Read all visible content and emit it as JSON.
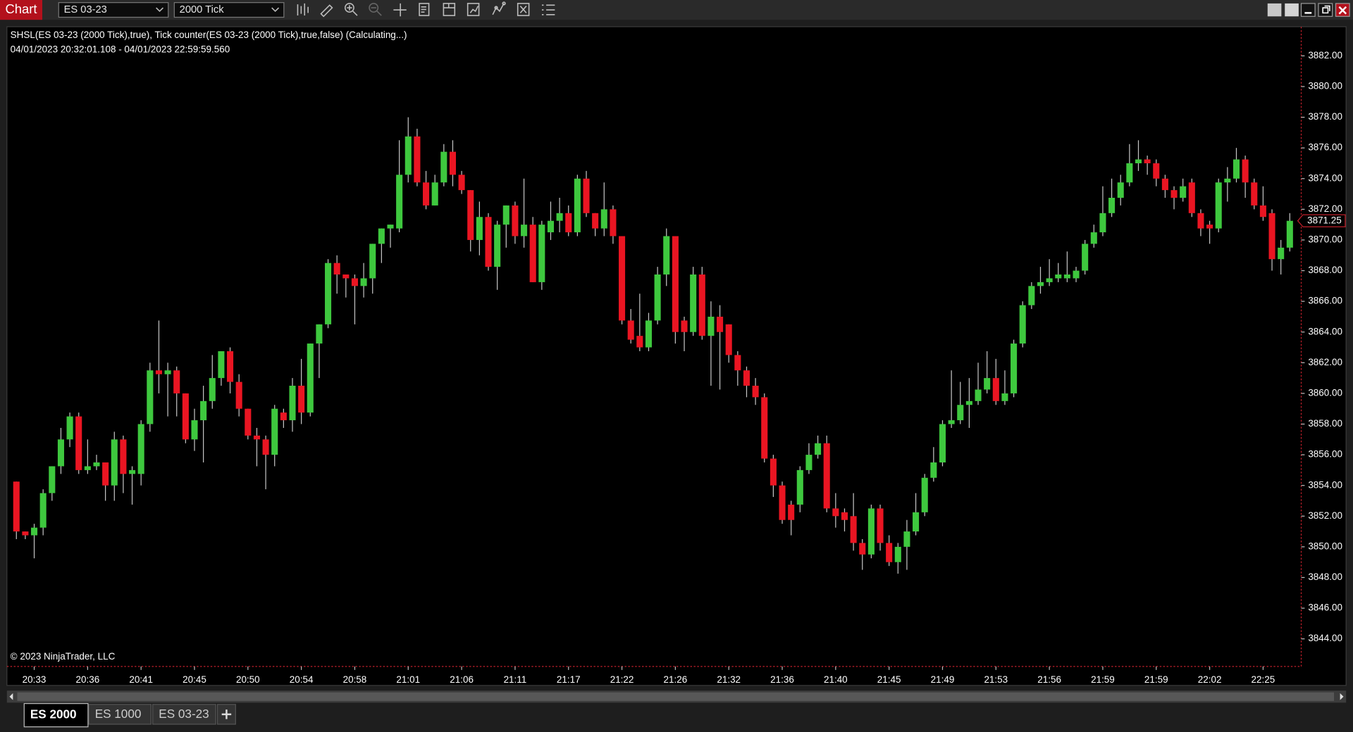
{
  "toolbar": {
    "title": "Chart",
    "instrument": "ES 03-23",
    "interval": "2000 Tick"
  },
  "tabs": [
    "ES 2000",
    "ES 1000",
    "ES 03-23"
  ],
  "chart_data": {
    "type": "candlestick",
    "title": "SHSL(ES 03-23 (2000 Tick),true), Tick counter(ES 03-23 (2000 Tick),true,false) (Calculating...)",
    "subtitle": "04/01/2023 20:32:01.108 - 04/01/2023 22:59:59.560",
    "annotation": "© 2023 NinjaTrader, LLC",
    "categories": [
      null,
      null,
      "20:33",
      null,
      null,
      null,
      null,
      null,
      "20:36",
      null,
      null,
      null,
      null,
      null,
      "20:41",
      null,
      null,
      null,
      null,
      null,
      "20:45",
      null,
      null,
      null,
      null,
      null,
      "20:50",
      null,
      null,
      null,
      null,
      null,
      "20:54",
      null,
      null,
      null,
      null,
      null,
      "20:58",
      null,
      null,
      null,
      null,
      null,
      "21:01",
      null,
      null,
      null,
      null,
      null,
      "21:06",
      null,
      null,
      null,
      null,
      null,
      "21:11",
      null,
      null,
      null,
      null,
      null,
      "21:17",
      null,
      null,
      null,
      null,
      null,
      "21:22",
      null,
      null,
      null,
      null,
      null,
      "21:26",
      null,
      null,
      null,
      null,
      null,
      "21:32",
      null,
      null,
      null,
      null,
      null,
      "21:36",
      null,
      null,
      null,
      null,
      null,
      "21:40",
      null,
      null,
      null,
      null,
      null,
      "21:45",
      null,
      null,
      null,
      null,
      null,
      "21:49",
      null,
      null,
      null,
      null,
      null,
      "21:53",
      null,
      null,
      null,
      null,
      null,
      "21:56",
      null,
      null,
      null,
      null,
      null,
      "21:59",
      null,
      null,
      null,
      null,
      null,
      "21:59",
      null,
      null,
      null,
      null,
      null,
      "22:02",
      null,
      null,
      null,
      null,
      null,
      "22:25",
      null,
      null,
      null
    ],
    "open": [
      3854.25,
      3851,
      3850.75,
      3851.25,
      3853.5,
      3855.25,
      3857,
      3858.5,
      3855,
      3855.25,
      3855.5,
      3854,
      3857,
      3854.75,
      3854.75,
      3858,
      3861.5,
      3861.25,
      3861.5,
      3860,
      3857,
      3858.25,
      3859.5,
      3861,
      3862.75,
      3860.75,
      3859,
      3857.25,
      3857,
      3856,
      3858.75,
      3858.25,
      3860.5,
      3858.75,
      3863.25,
      3864.5,
      3868.5,
      3867.75,
      3867.5,
      3867,
      3867.5,
      3869.75,
      3870.75,
      3870.75,
      3874.25,
      3876.75,
      3873.75,
      3872.25,
      3873.75,
      3875.75,
      3874.25,
      3873.25,
      3870,
      3871.5,
      3868.25,
      3871,
      3872.25,
      3870.25,
      3871,
      3867.25,
      3870.5,
      3871.25,
      3871.75,
      3870.5,
      3874,
      3871.75,
      3870.75,
      3872,
      3870.25,
      3864.75,
      3863.75,
      3863,
      3864.75,
      3867.75,
      3870.25,
      3864.75,
      3864,
      3867.75,
      3863.75,
      3865,
      3864.5,
      3862.5,
      3861.5,
      3860.5,
      3859.75,
      3855.75,
      3854,
      3852.75,
      3852.75,
      3855,
      3856,
      3856.75,
      3852.5,
      3852.25,
      3852,
      3850.25,
      3849.5,
      3852.5,
      3850.25,
      3849,
      3850,
      3851,
      3852.25,
      3854.5,
      3855.5,
      3858,
      3858.25,
      3859.25,
      3859.5,
      3860.25,
      3861,
      3859.5,
      3860,
      3863.25,
      3865.75,
      3867,
      3867.25,
      3867.5,
      3867.5,
      3867.5,
      3868,
      3869.75,
      3870.5,
      3871.75,
      3872.75,
      3873.75,
      3875,
      3875.25,
      3875,
      3874,
      3873.25,
      3872.75,
      3873.75,
      3871.75,
      3871,
      3870.75,
      3873.75,
      3874,
      3875.25,
      3873.75,
      3872.25,
      3871.75,
      3868.75,
      3869.5
    ],
    "high": [
      3854.25,
      3851,
      3851.5,
      3853.75,
      3855.25,
      3857.75,
      3858.75,
      3858.75,
      3857,
      3856,
      3855.5,
      3857.5,
      3857.25,
      3855.25,
      3858.25,
      3862,
      3864.75,
      3862,
      3861.75,
      3860,
      3859,
      3860.5,
      3862.5,
      3862.75,
      3863,
      3861.25,
      3859,
      3857.75,
      3857.25,
      3859.25,
      3859,
      3861,
      3862.25,
      3863.25,
      3864.5,
      3868.75,
      3869,
      3867.75,
      3867.75,
      3868.5,
      3869.75,
      3870.75,
      3871,
      3876.5,
      3878,
      3877.25,
      3874.5,
      3874.25,
      3876.25,
      3876.5,
      3874.5,
      3873.25,
      3872.5,
      3871.75,
      3871.25,
      3872.25,
      3872.5,
      3874,
      3871.5,
      3871.25,
      3872.5,
      3872.75,
      3872.25,
      3874.25,
      3874.5,
      3871.75,
      3873.75,
      3872.25,
      3870.25,
      3865.5,
      3866.5,
      3865.25,
      3868.25,
      3870.75,
      3870.25,
      3865,
      3868.25,
      3868.25,
      3866,
      3865.75,
      3864.5,
      3862.75,
      3861.75,
      3861,
      3860,
      3856,
      3854.25,
      3853,
      3855.25,
      3856.75,
      3857.25,
      3857.25,
      3853.5,
      3852.5,
      3853.5,
      3850.5,
      3852.75,
      3852.75,
      3850.75,
      3850.25,
      3851.75,
      3853.5,
      3854.75,
      3856.5,
      3858.25,
      3861.5,
      3860.75,
      3861,
      3862,
      3862.75,
      3862.25,
      3861.5,
      3863.5,
      3866,
      3867.25,
      3868.25,
      3868.75,
      3868.5,
      3869.25,
      3868.25,
      3870,
      3871,
      3873.5,
      3874,
      3874.25,
      3876.25,
      3876.5,
      3875.5,
      3875.25,
      3874.25,
      3873.5,
      3874,
      3874,
      3872,
      3871.25,
      3874,
      3874.75,
      3876,
      3875.5,
      3874,
      3873.5,
      3872,
      3870,
      3871.75
    ],
    "low": [
      3850.5,
      3850.5,
      3849.25,
      3850.75,
      3853,
      3854.75,
      3856.5,
      3854.75,
      3854.75,
      3855,
      3853,
      3853,
      3853.5,
      3852.75,
      3854,
      3857.5,
      3860,
      3858.5,
      3858.5,
      3856.75,
      3856.25,
      3855.5,
      3859,
      3860.5,
      3860,
      3858.5,
      3857,
      3855.25,
      3853.75,
      3855.25,
      3857.75,
      3857.5,
      3858,
      3858.5,
      3861,
      3864.25,
      3866.5,
      3866.25,
      3864.5,
      3866.25,
      3866.5,
      3868.5,
      3869.5,
      3870.5,
      3873.75,
      3873.5,
      3872,
      3872.25,
      3873.5,
      3873.5,
      3873,
      3869.25,
      3869,
      3868,
      3866.75,
      3869.5,
      3869.75,
      3869.5,
      3867.25,
      3866.75,
      3870,
      3870.5,
      3870.25,
      3870.25,
      3871.5,
      3870.25,
      3870.25,
      3869.75,
      3864.5,
      3863.25,
      3862.75,
      3862.75,
      3864.5,
      3867,
      3863.25,
      3862.75,
      3863.75,
      3863.5,
      3860.5,
      3860.25,
      3862,
      3860.5,
      3859.75,
      3859.25,
      3855.5,
      3853.25,
      3851.5,
      3850.75,
      3852.25,
      3854.75,
      3855.75,
      3852.25,
      3851.25,
      3851,
      3849.75,
      3848.5,
      3849.25,
      3849.75,
      3848.75,
      3848.25,
      3848.5,
      3850.75,
      3852,
      3854.25,
      3855.25,
      3857.75,
      3858,
      3857.75,
      3859.25,
      3860,
      3859.25,
      3859.25,
      3859.75,
      3863,
      3865.5,
      3866.5,
      3867,
      3867.25,
      3867.25,
      3867.25,
      3867.75,
      3869.5,
      3870.25,
      3871.5,
      3872.25,
      3873.5,
      3874.5,
      3874.25,
      3873.5,
      3872.75,
      3872,
      3872.5,
      3871.5,
      3870.25,
      3869.75,
      3870.5,
      3872.5,
      3873.75,
      3872.75,
      3872,
      3871.25,
      3868,
      3867.75,
      3869.25
    ],
    "close": [
      3851,
      3850.75,
      3851.25,
      3853.5,
      3855.25,
      3857,
      3858.5,
      3855,
      3855.25,
      3855.5,
      3854,
      3857,
      3854.75,
      3855,
      3858,
      3861.5,
      3861.25,
      3861.5,
      3860,
      3857,
      3858.25,
      3859.5,
      3861,
      3862.75,
      3860.75,
      3859,
      3857.25,
      3857,
      3856,
      3859,
      3858.25,
      3860.5,
      3858.75,
      3863.25,
      3864.5,
      3868.5,
      3867.75,
      3867.5,
      3867,
      3867.5,
      3869.75,
      3870.75,
      3871,
      3874.25,
      3876.75,
      3873.75,
      3872.25,
      3873.75,
      3875.75,
      3874.25,
      3873.25,
      3870,
      3871.5,
      3868.25,
      3871,
      3872.25,
      3870.25,
      3871,
      3867.25,
      3871,
      3871.25,
      3871.75,
      3870.5,
      3874,
      3871.75,
      3870.75,
      3872,
      3870.25,
      3864.75,
      3863.5,
      3863,
      3864.75,
      3867.75,
      3870.25,
      3864,
      3864,
      3867.75,
      3863.75,
      3865,
      3864,
      3862.5,
      3861.5,
      3860.5,
      3859.75,
      3855.75,
      3854,
      3851.75,
      3851.75,
      3855,
      3856,
      3856.75,
      3852.5,
      3852,
      3851.75,
      3850.25,
      3849.5,
      3852.5,
      3850.25,
      3849,
      3850,
      3851,
      3852.25,
      3854.5,
      3855.5,
      3858,
      3858.25,
      3859.25,
      3859.5,
      3860.25,
      3861,
      3859.5,
      3860,
      3863.25,
      3865.75,
      3867,
      3867.25,
      3867.5,
      3867.75,
      3867.75,
      3868,
      3869.75,
      3870.5,
      3871.75,
      3872.75,
      3873.75,
      3875,
      3875.25,
      3875,
      3874,
      3873.25,
      3872.75,
      3873.5,
      3871.75,
      3870.75,
      3870.75,
      3873.75,
      3874,
      3875.25,
      3873.75,
      3872.25,
      3871.5,
      3868.75,
      3869.5,
      3871.25
    ],
    "up_color": "#3ec83e",
    "down_color": "#ea1522",
    "wick_color": "#c4c4c4",
    "ylim": [
      3842.2,
      3883.9
    ],
    "yticks": [
      {
        "value": 3844,
        "label": "3844.00"
      },
      {
        "value": 3846,
        "label": "3846.00"
      },
      {
        "value": 3848,
        "label": "3848.00"
      },
      {
        "value": 3850,
        "label": "3850.00"
      },
      {
        "value": 3852,
        "label": "3852.00"
      },
      {
        "value": 3854,
        "label": "3854.00"
      },
      {
        "value": 3856,
        "label": "3856.00"
      },
      {
        "value": 3858,
        "label": "3858.00"
      },
      {
        "value": 3860,
        "label": "3860.00"
      },
      {
        "value": 3862,
        "label": "3862.00"
      },
      {
        "value": 3864,
        "label": "3864.00"
      },
      {
        "value": 3866,
        "label": "3866.00"
      },
      {
        "value": 3868,
        "label": "3868.00"
      },
      {
        "value": 3870,
        "label": "3870.00"
      },
      {
        "value": 3872,
        "label": "3872.00"
      },
      {
        "value": 3874,
        "label": "3874.00"
      },
      {
        "value": 3876,
        "label": "3876.00"
      },
      {
        "value": 3878,
        "label": "3878.00"
      },
      {
        "value": 3880,
        "label": "3880.00"
      },
      {
        "value": 3882,
        "label": "3882.00"
      }
    ],
    "grid": false
  }
}
